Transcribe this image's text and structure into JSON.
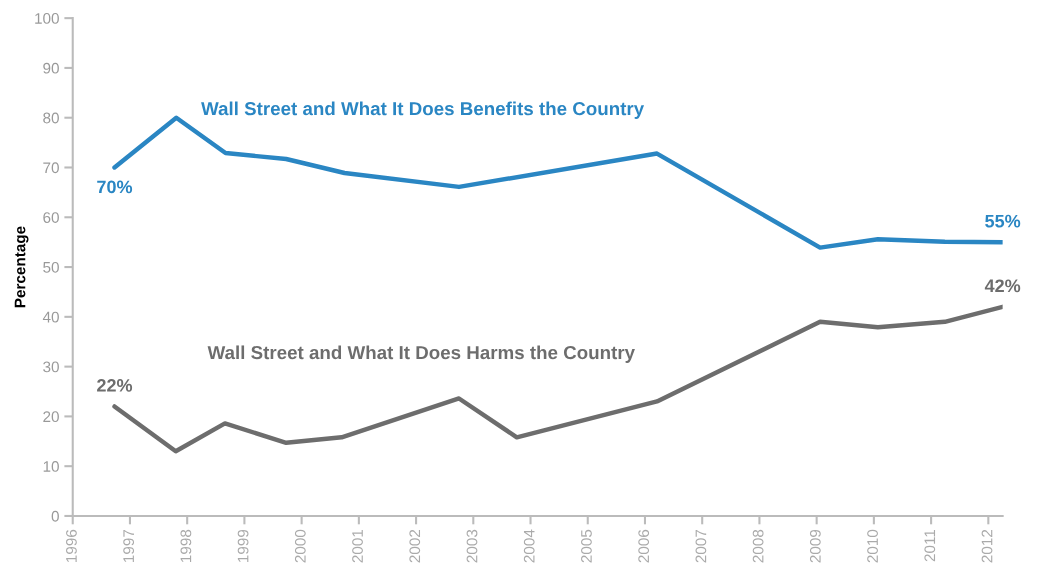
{
  "chart_data": {
    "type": "line",
    "ylabel": "Percentage",
    "xlim": [
      1996,
      2012.25
    ],
    "xticks": [
      1996,
      1997,
      1998,
      1999,
      2000,
      2001,
      2002,
      2003,
      2004,
      2005,
      2006,
      2007,
      2008,
      2009,
      2010,
      2011,
      2012
    ],
    "ylim": [
      0,
      100
    ],
    "yticks": [
      0,
      10,
      20,
      30,
      40,
      50,
      60,
      70,
      80,
      90,
      100
    ],
    "grid": false,
    "legend": false,
    "marker": "none",
    "line_style": "solid",
    "series": [
      {
        "name": "Wall Street and What It Does Benefits the Country",
        "color": "#2a86c3",
        "x": [
          1996.73,
          1997.81,
          1998.67,
          1999.73,
          2000.75,
          2002.75,
          2006.21,
          2009.06,
          2010.07,
          2011.24,
          2012.25
        ],
        "values": [
          70,
          80,
          72.9,
          71.7,
          68.9,
          66.1,
          72.8,
          53.9,
          55.6,
          55.1,
          55
        ],
        "value_labels": [
          "70%",
          null,
          null,
          null,
          null,
          null,
          null,
          null,
          null,
          null,
          "55%"
        ]
      },
      {
        "name": "Wall Street and What It Does Harms the Country",
        "color": "#6d6d6d",
        "x": [
          1996.73,
          1997.8,
          1998.66,
          1999.73,
          2000.7,
          2002.75,
          2003.76,
          2006.21,
          2009.06,
          2010.07,
          2011.24,
          2012.25
        ],
        "values": [
          22,
          13,
          18.6,
          14.7,
          15.8,
          23.6,
          15.8,
          23,
          39,
          37.9,
          39,
          42
        ],
        "value_labels": [
          "22%",
          null,
          null,
          null,
          null,
          null,
          null,
          null,
          null,
          null,
          null,
          "42%"
        ]
      }
    ]
  }
}
